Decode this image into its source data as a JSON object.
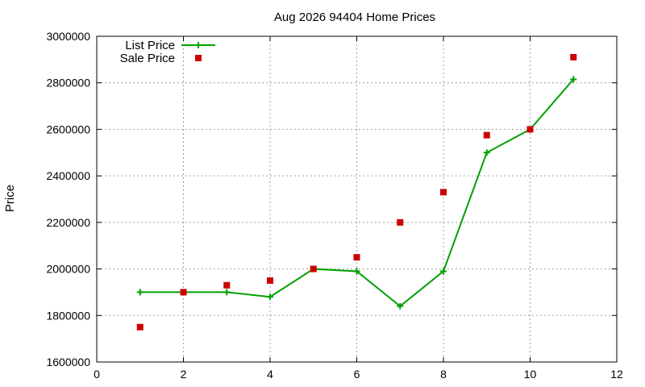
{
  "chart_data": {
    "type": "line",
    "title": "Aug 2026 94404 Home Prices",
    "xlabel": "",
    "ylabel": "Price",
    "xlim": [
      0,
      12
    ],
    "ylim": [
      1600000,
      3000000
    ],
    "x_ticks": [
      "0",
      "2",
      "4",
      "6",
      "8",
      "10",
      "12"
    ],
    "y_ticks": [
      "1600000",
      "1800000",
      "2000000",
      "2200000",
      "2400000",
      "2600000",
      "2800000",
      "3000000"
    ],
    "grid": true,
    "legend_position": "top-left",
    "series": [
      {
        "name": "List Price",
        "style": "line-with-plus-markers",
        "color": "#00a000",
        "x": [
          1,
          2,
          3,
          4,
          5,
          6,
          7,
          8,
          9,
          10,
          11
        ],
        "y": [
          1900000,
          1900000,
          1900000,
          1880000,
          2000000,
          1990000,
          1840000,
          1990000,
          2500000,
          2600000,
          2815000
        ]
      },
      {
        "name": "Sale Price",
        "style": "square-markers",
        "color": "#cc0000",
        "x": [
          1,
          2,
          3,
          4,
          5,
          6,
          7,
          8,
          9,
          10,
          11
        ],
        "y": [
          1750000,
          1900000,
          1930000,
          1950000,
          2000000,
          2050000,
          2200000,
          2330000,
          2575000,
          2600000,
          2910000
        ]
      }
    ]
  }
}
